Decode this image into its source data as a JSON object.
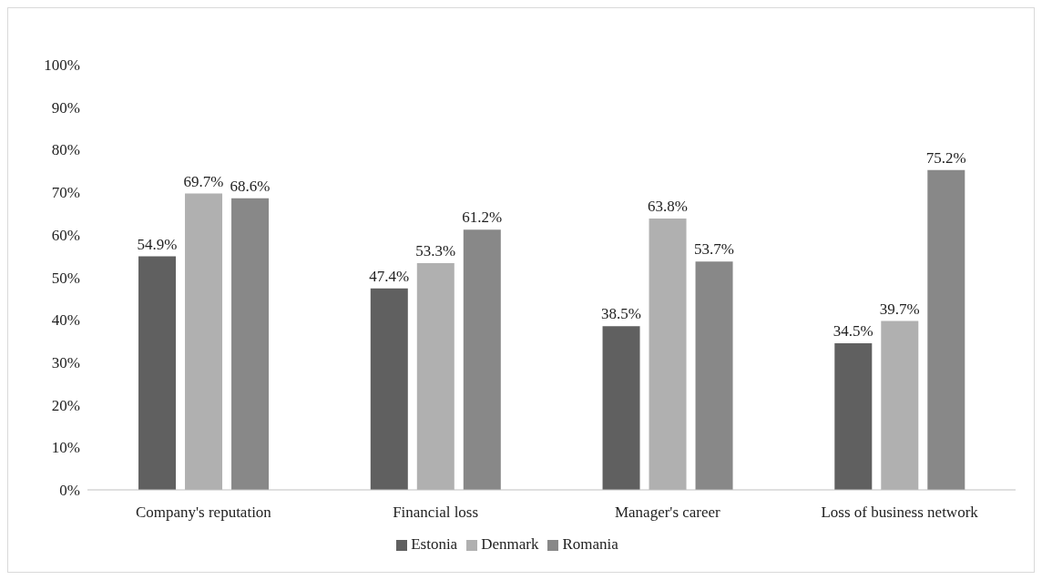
{
  "chart_data": {
    "type": "bar",
    "categories": [
      "Company's reputation",
      "Financial loss",
      "Manager's career",
      "Loss of business network"
    ],
    "series": [
      {
        "name": "Estonia",
        "color": "#606060",
        "values": [
          54.9,
          47.4,
          38.5,
          34.5
        ],
        "value_labels": [
          "54.9%",
          "47.4%",
          "38.5%",
          "34.5%"
        ]
      },
      {
        "name": "Denmark",
        "color": "#b0b0b0",
        "values": [
          69.7,
          53.3,
          63.8,
          39.7
        ],
        "value_labels": [
          "69.7%",
          "53.3%",
          "63.8%",
          "39.7%"
        ]
      },
      {
        "name": "Romania",
        "color": "#888888",
        "values": [
          68.6,
          61.2,
          53.7,
          75.2
        ],
        "value_labels": [
          "68.6%",
          "61.2%",
          "53.7%",
          "75.2%"
        ]
      }
    ],
    "ylim": [
      0,
      100
    ],
    "yticks": [
      {
        "value": 0,
        "label": "0%"
      },
      {
        "value": 10,
        "label": "10%"
      },
      {
        "value": 20,
        "label": "20%"
      },
      {
        "value": 30,
        "label": "30%"
      },
      {
        "value": 40,
        "label": "40%"
      },
      {
        "value": 50,
        "label": "50%"
      },
      {
        "value": 60,
        "label": "60%"
      },
      {
        "value": 70,
        "label": "70%"
      },
      {
        "value": 80,
        "label": "80%"
      },
      {
        "value": 90,
        "label": "90%"
      },
      {
        "value": 100,
        "label": "100%"
      }
    ],
    "grid": false,
    "legend": "bottom"
  }
}
